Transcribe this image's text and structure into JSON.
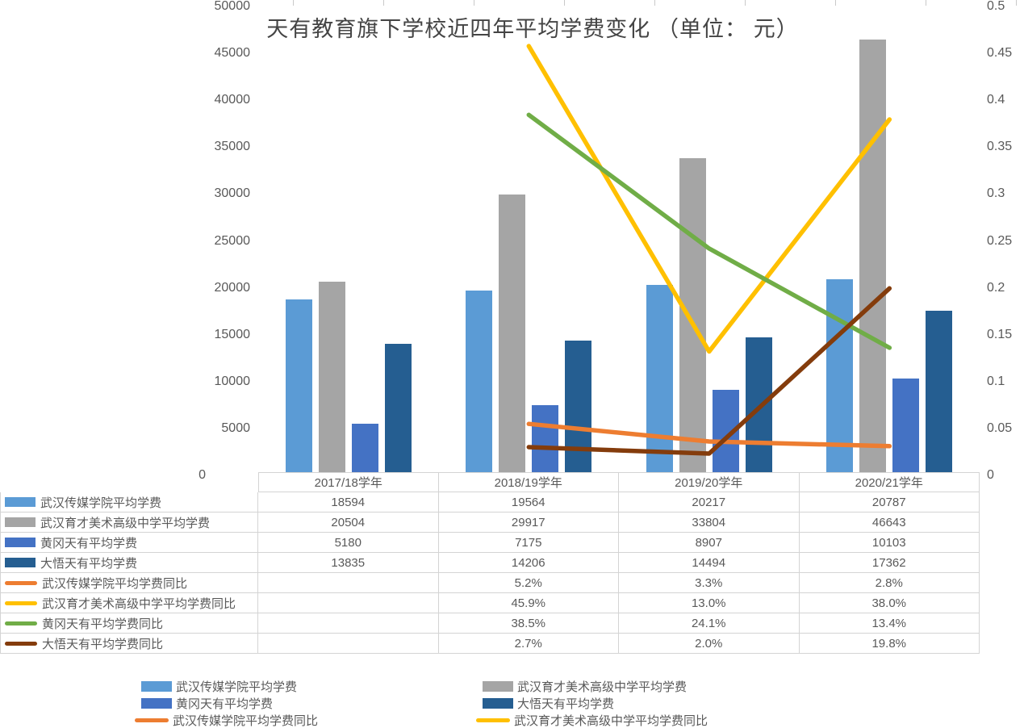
{
  "title": "天有教育旗下学校近四年平均学费变化 （单位： 元）",
  "chart_data": {
    "type": "combo-bar-line",
    "categories": [
      "2017/18学年",
      "2018/19学年",
      "2019/20学年",
      "2020/21学年"
    ],
    "bar_series": [
      {
        "name": "武汉传媒学院平均学费",
        "color": "#5B9BD5",
        "values": [
          18594,
          19564,
          20217,
          20787
        ]
      },
      {
        "name": "武汉育才美术高级中学平均学费",
        "color": "#A5A5A5",
        "values": [
          20504,
          29917,
          33804,
          46643
        ]
      },
      {
        "name": "黄冈天有平均学费",
        "color": "#4472C4",
        "values": [
          5180,
          7175,
          8907,
          10103
        ]
      },
      {
        "name": "大悟天有平均学费",
        "color": "#255E91",
        "values": [
          13835,
          14206,
          14494,
          17362
        ]
      }
    ],
    "line_series": [
      {
        "name": "武汉传媒学院平均学费同比",
        "color": "#ED7D31",
        "values": [
          null,
          0.052,
          0.033,
          0.028
        ]
      },
      {
        "name": "武汉育才美术高级中学平均学费同比",
        "color": "#FFC000",
        "values": [
          null,
          0.459,
          0.13,
          0.38
        ]
      },
      {
        "name": "黄冈天有平均学费同比",
        "color": "#70AD47",
        "values": [
          null,
          0.385,
          0.241,
          0.134
        ]
      },
      {
        "name": "大悟天有平均学费同比",
        "color": "#843C0C",
        "values": [
          null,
          0.027,
          0.02,
          0.198
        ]
      }
    ],
    "left_axis": {
      "ticks": [
        "0",
        "5000",
        "10000",
        "15000",
        "20000",
        "25000",
        "30000",
        "35000",
        "40000",
        "45000",
        "50000"
      ],
      "max": 50000
    },
    "right_axis": {
      "ticks": [
        "0",
        "0.05",
        "0.1",
        "0.15",
        "0.2",
        "0.25",
        "0.3",
        "0.35",
        "0.4",
        "0.45",
        "0.5"
      ],
      "max": 0.5
    },
    "grid": "off",
    "legend_position": "bottom"
  },
  "data_table": {
    "header": [
      "2017/18学年",
      "2018/19学年",
      "2019/20学年",
      "2020/21学年"
    ],
    "rows": [
      {
        "label": "武汉传媒学院平均学费",
        "swatch": "bar",
        "color": "#5B9BD5",
        "values": [
          "18594",
          "19564",
          "20217",
          "20787"
        ]
      },
      {
        "label": "武汉育才美术高级中学平均学费",
        "swatch": "bar",
        "color": "#A5A5A5",
        "values": [
          "20504",
          "29917",
          "33804",
          "46643"
        ]
      },
      {
        "label": "黄冈天有平均学费",
        "swatch": "bar",
        "color": "#4472C4",
        "values": [
          "5180",
          "7175",
          "8907",
          "10103"
        ]
      },
      {
        "label": "大悟天有平均学费",
        "swatch": "bar",
        "color": "#255E91",
        "values": [
          "13835",
          "14206",
          "14494",
          "17362"
        ]
      },
      {
        "label": "武汉传媒学院平均学费同比",
        "swatch": "line",
        "color": "#ED7D31",
        "values": [
          "",
          "5.2%",
          "3.3%",
          "2.8%"
        ]
      },
      {
        "label": "武汉育才美术高级中学平均学费同比",
        "swatch": "line",
        "color": "#FFC000",
        "values": [
          "",
          "45.9%",
          "13.0%",
          "38.0%"
        ]
      },
      {
        "label": "黄冈天有平均学费同比",
        "swatch": "line",
        "color": "#70AD47",
        "values": [
          "",
          "38.5%",
          "24.1%",
          "13.4%"
        ]
      },
      {
        "label": "大悟天有平均学费同比",
        "swatch": "line",
        "color": "#843C0C",
        "values": [
          "",
          "2.7%",
          "2.0%",
          "19.8%"
        ]
      }
    ]
  },
  "legend": {
    "items": [
      {
        "label": "武汉传媒学院平均学费",
        "swatch": "bar",
        "color": "#5B9BD5",
        "row": 0,
        "col": 0
      },
      {
        "label": "武汉育才美术高级中学平均学费",
        "swatch": "bar",
        "color": "#A5A5A5",
        "row": 0,
        "col": 1
      },
      {
        "label": "黄冈天有平均学费",
        "swatch": "bar",
        "color": "#4472C4",
        "row": 1,
        "col": 0
      },
      {
        "label": "大悟天有平均学费",
        "swatch": "bar",
        "color": "#255E91",
        "row": 1,
        "col": 1
      },
      {
        "label": "武汉传媒学院平均学费同比",
        "swatch": "line",
        "color": "#ED7D31",
        "row": 2,
        "col": 0
      },
      {
        "label": "武汉育才美术高级中学平均学费同比",
        "swatch": "line",
        "color": "#FFC000",
        "row": 2,
        "col": 1
      }
    ]
  }
}
